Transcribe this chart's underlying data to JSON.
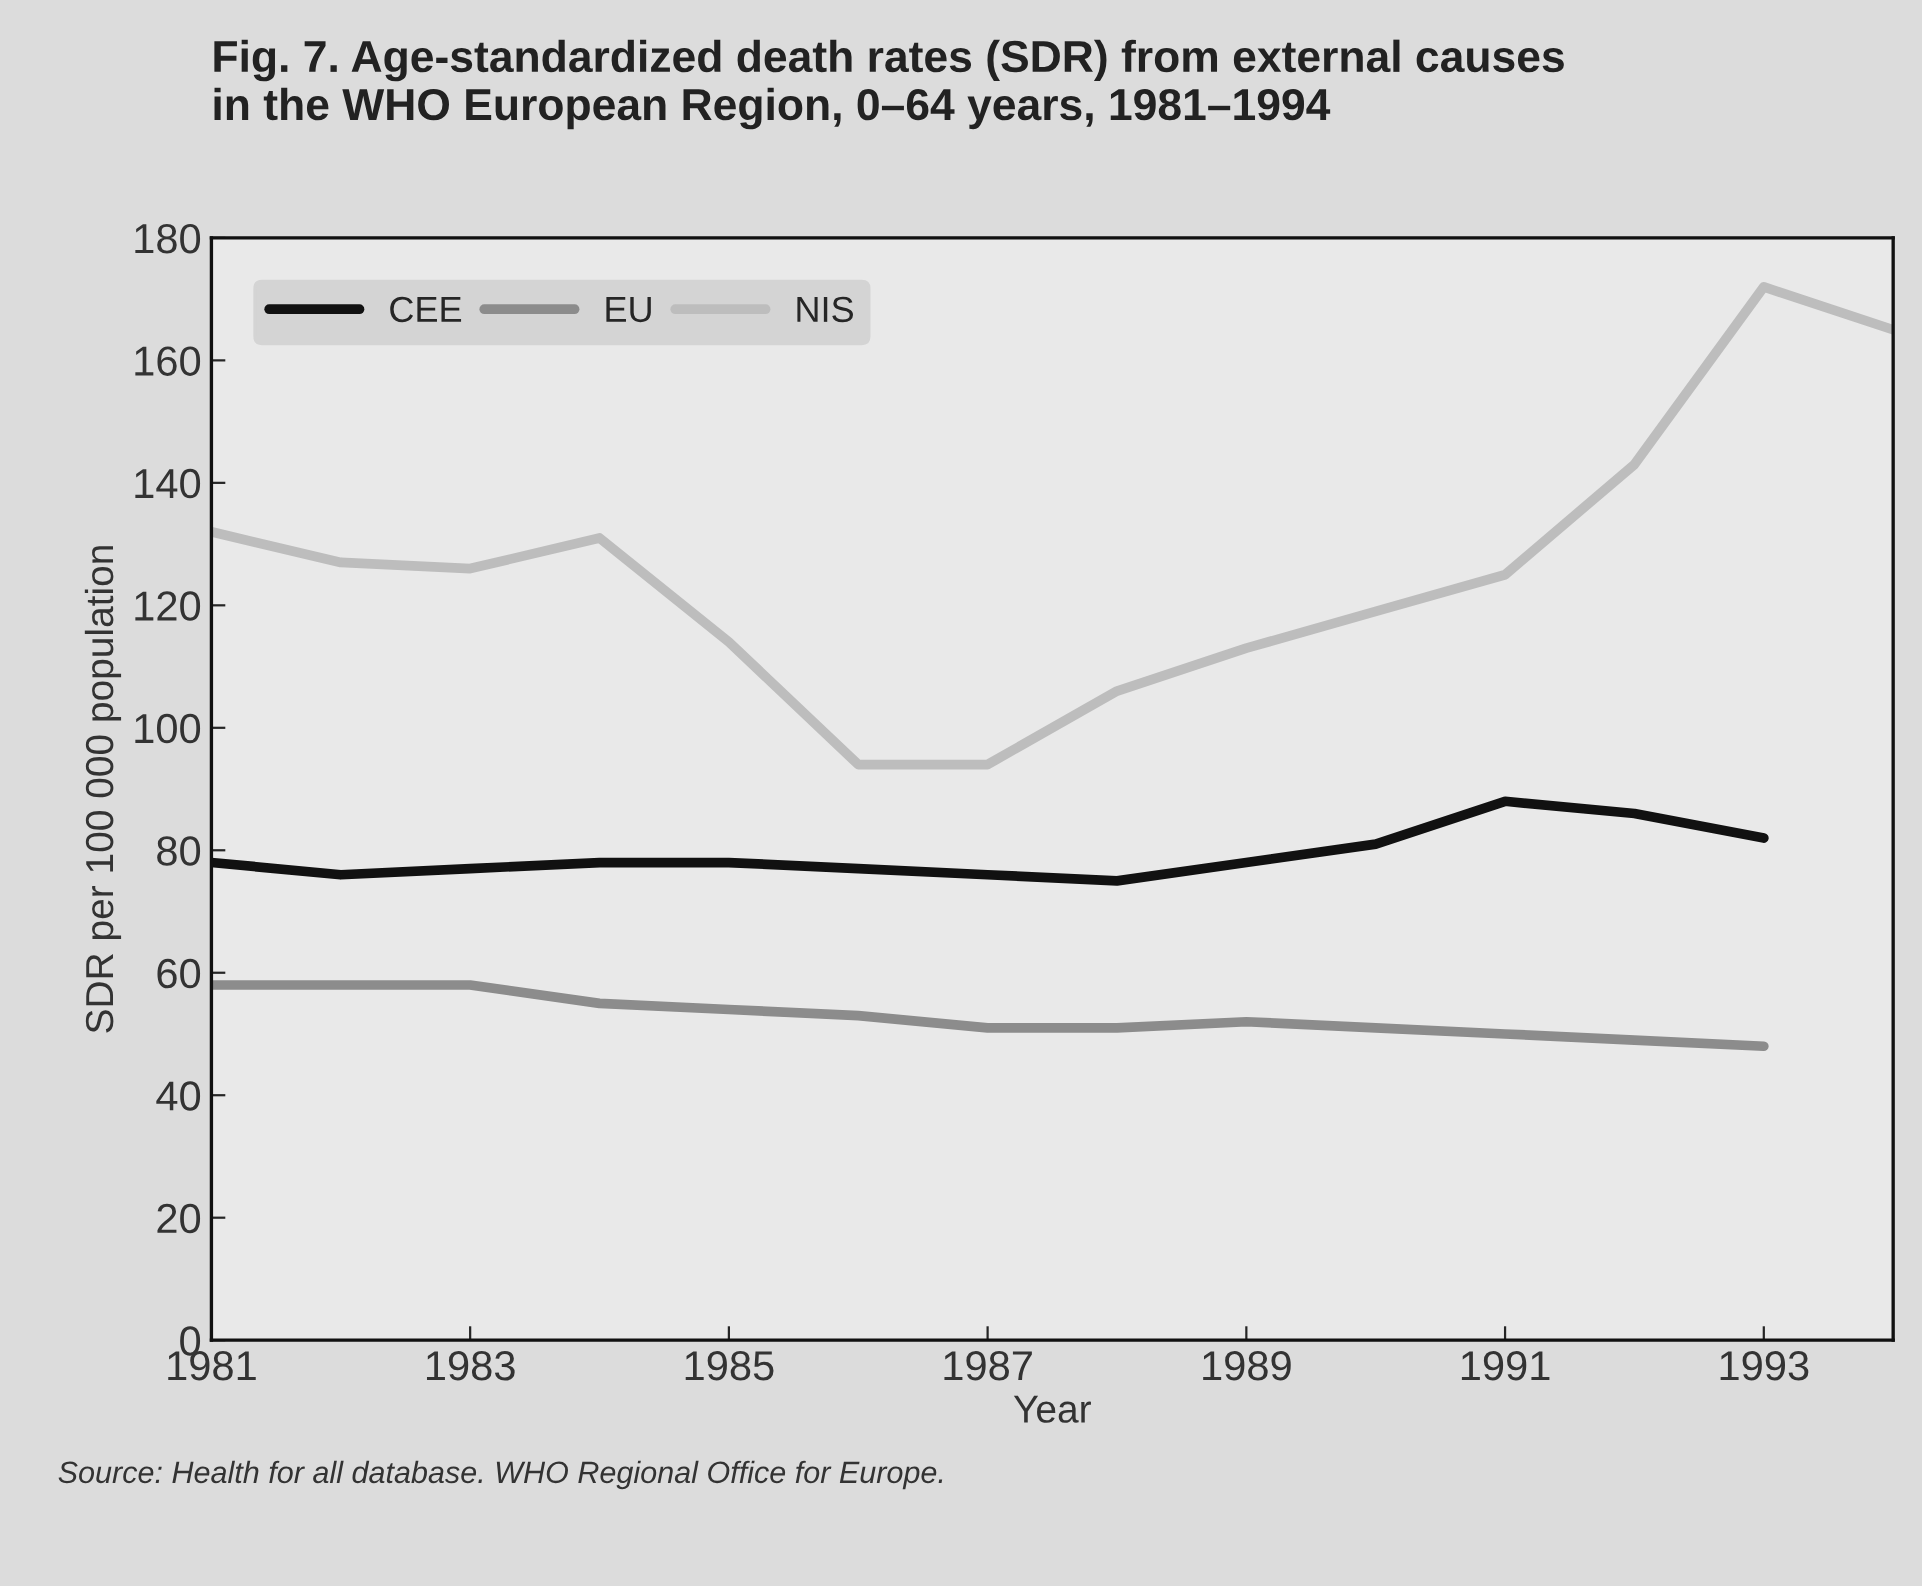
{
  "chart_data": {
    "type": "line",
    "title": "Fig. 7. Age-standardized death rates (SDR) from external causes\nin the WHO European Region, 0–64 years, 1981–1994",
    "xlabel": "Year",
    "ylabel": "SDR per 100 000 population",
    "x": [
      1981,
      1982,
      1983,
      1984,
      1985,
      1986,
      1987,
      1988,
      1989,
      1990,
      1991,
      1992,
      1993,
      1994
    ],
    "series": [
      {
        "name": "CEE",
        "color": "#111111",
        "values": [
          78,
          76,
          77,
          78,
          78,
          77,
          76,
          75,
          78,
          81,
          88,
          86,
          82,
          null
        ]
      },
      {
        "name": "EU",
        "color": "#8c8c8c",
        "values": [
          58,
          58,
          58,
          55,
          54,
          53,
          51,
          51,
          52,
          51,
          50,
          49,
          48,
          null
        ]
      },
      {
        "name": "NIS",
        "color": "#bdbdbd",
        "values": [
          132,
          127,
          126,
          131,
          114,
          94,
          94,
          106,
          113,
          119,
          125,
          143,
          172,
          165
        ]
      }
    ],
    "xlim": [
      1981,
      1994
    ],
    "xticks": [
      1981,
      1983,
      1985,
      1987,
      1989,
      1991,
      1993
    ],
    "ylim": [
      0,
      180
    ],
    "yticks": [
      0,
      20,
      40,
      60,
      80,
      100,
      120,
      140,
      160,
      180
    ],
    "grid": false,
    "legend": "top left",
    "marker": "none",
    "line_style": "solid",
    "annotations": [
      "Source: Health for all database. WHO Regional Office for Europe."
    ]
  }
}
